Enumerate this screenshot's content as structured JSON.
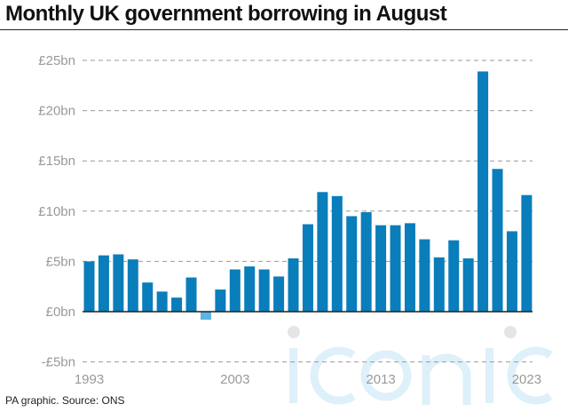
{
  "chart_data": {
    "type": "bar",
    "title": "Monthly UK government borrowing in August",
    "source": "PA graphic. Source: ONS",
    "watermark": "iconic",
    "xlabel": "",
    "ylabel": "",
    "ylim": [
      -5,
      25
    ],
    "yticks": [
      -5,
      0,
      5,
      10,
      15,
      20,
      25
    ],
    "ytick_labels": [
      "-£5bn",
      "£0bn",
      "£5bn",
      "£10bn",
      "£15bn",
      "£20bn",
      "£25bn"
    ],
    "xtick_labels": [
      "1993",
      "2003",
      "2013",
      "2023"
    ],
    "categories": [
      1993,
      1994,
      1995,
      1996,
      1997,
      1998,
      1999,
      2000,
      2001,
      2002,
      2003,
      2004,
      2005,
      2006,
      2007,
      2008,
      2009,
      2010,
      2011,
      2012,
      2013,
      2014,
      2015,
      2016,
      2017,
      2018,
      2019,
      2020,
      2021,
      2022,
      2023
    ],
    "values": [
      5.0,
      5.6,
      5.7,
      5.2,
      2.9,
      2.0,
      1.4,
      3.4,
      -0.8,
      2.2,
      4.2,
      4.5,
      4.2,
      3.5,
      5.3,
      8.7,
      11.9,
      11.5,
      9.5,
      9.9,
      8.6,
      8.6,
      8.8,
      7.2,
      5.4,
      7.1,
      5.3,
      23.9,
      14.2,
      8.0,
      11.6
    ],
    "colors": {
      "positive": "#0a7dbb",
      "negative": "#5ab4e5",
      "grid": "#999999",
      "zero": "#222222"
    },
    "grid": true
  }
}
